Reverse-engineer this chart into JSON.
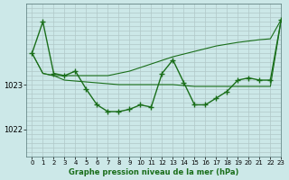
{
  "title": "Graphe pression niveau de la mer (hPa)",
  "bg_color": "#cce8e8",
  "grid_color": "#b0c8c8",
  "line_color": "#1a6e1a",
  "xlim": [
    -0.5,
    23
  ],
  "ylim": [
    1021.4,
    1024.8
  ],
  "yticks": [
    1022,
    1023
  ],
  "xticks": [
    0,
    1,
    2,
    3,
    4,
    5,
    6,
    7,
    8,
    9,
    10,
    11,
    12,
    13,
    14,
    15,
    16,
    17,
    18,
    19,
    20,
    21,
    22,
    23
  ],
  "hours": [
    0,
    1,
    2,
    3,
    4,
    5,
    6,
    7,
    8,
    9,
    10,
    11,
    12,
    13,
    14,
    15,
    16,
    17,
    18,
    19,
    20,
    21,
    22,
    23
  ],
  "line_main": [
    1023.7,
    1024.4,
    1023.25,
    1023.2,
    1023.3,
    1022.9,
    1022.55,
    1022.4,
    1022.4,
    1022.45,
    1022.55,
    1022.5,
    1023.25,
    1023.55,
    1023.05,
    1022.55,
    1022.55,
    1022.7,
    1022.85,
    1023.1,
    1023.15,
    1023.1,
    1023.1,
    1024.45
  ],
  "line_upper": [
    1023.7,
    1023.25,
    1023.2,
    1023.2,
    1023.2,
    1023.2,
    1023.2,
    1023.2,
    1023.25,
    1023.3,
    1023.38,
    1023.46,
    1023.54,
    1023.62,
    1023.68,
    1023.74,
    1023.8,
    1023.86,
    1023.9,
    1023.94,
    1023.97,
    1024.0,
    1024.02,
    1024.45
  ],
  "line_flat": [
    1023.7,
    1023.25,
    1023.2,
    1023.1,
    1023.08,
    1023.06,
    1023.04,
    1023.02,
    1023.0,
    1023.0,
    1023.0,
    1023.0,
    1023.0,
    1023.0,
    1022.98,
    1022.96,
    1022.96,
    1022.96,
    1022.96,
    1022.96,
    1022.96,
    1022.96,
    1022.96,
    1024.45
  ]
}
